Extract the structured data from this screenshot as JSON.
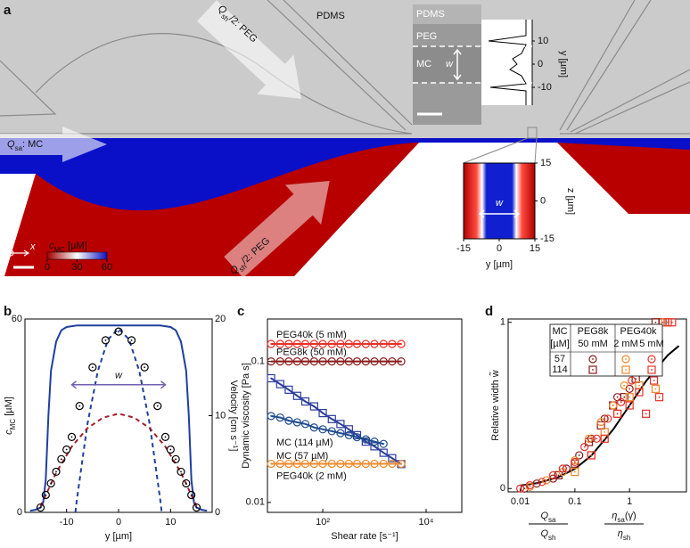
{
  "panel_a": {
    "label": "a",
    "pdms": "PDMS",
    "inlet_top": {
      "q": "Q",
      "sub": "sh",
      "rest": "/2: PEG"
    },
    "inlet_side": {
      "q": "Q",
      "sub": "sa",
      "rest": ": MC"
    },
    "inlet_bottom": {
      "q": "Q",
      "sub": "sh",
      "rest": "/2: PEG"
    },
    "micrograph": {
      "pdms": "PDMS",
      "peg": "PEG",
      "mc": "MC",
      "w": "w",
      "yticks": [
        10,
        0,
        -10
      ],
      "ylabel": "y [µm]"
    },
    "simulation": {
      "w": "w",
      "zticks": [
        15,
        0,
        -15
      ],
      "yticks": [
        -15,
        0,
        15
      ],
      "zlabel": "z [µm]",
      "ylabel": "y [µm]"
    },
    "colorbar": {
      "label": {
        "c": "c",
        "sub": "MC",
        "rest": " [µM]"
      },
      "ticks": [
        0,
        30,
        60
      ]
    },
    "axes": {
      "y": "y",
      "z": "z",
      "x": "x"
    }
  },
  "chart_data": [
    {
      "type": "line",
      "label": "b",
      "xlabel": "y [µm]",
      "ylabel": {
        "c": "c",
        "sub": "MC",
        "rest": " [µM]"
      },
      "ylabel_color": "#1f3f9f",
      "y2label": "Velocity [cm s⁻¹]",
      "annotation": "w",
      "xlim": [
        -18,
        18
      ],
      "xticks": [
        -10,
        0,
        10
      ],
      "ylim": [
        0,
        60
      ],
      "yticks": [
        0,
        60
      ],
      "y2lim": [
        0,
        20
      ],
      "y2ticks": [
        0,
        10,
        20
      ],
      "series": [
        {
          "color": "#1f3f9f",
          "x": [
            -17,
            -16,
            -15,
            -14.5,
            -14,
            -13.5,
            -13,
            -12,
            -11,
            -10,
            -8,
            -4,
            0,
            4,
            8,
            10,
            11,
            12,
            13,
            13.5,
            14,
            14.5,
            15,
            16,
            17
          ],
          "values": [
            0.5,
            0.8,
            1.5,
            3,
            10,
            30,
            44,
            53,
            56.5,
            57.5,
            58,
            58,
            58,
            58,
            58,
            57.5,
            56.5,
            53,
            44,
            30,
            10,
            3,
            1.5,
            0.8,
            0.5
          ]
        },
        {
          "color": "#1f3f9f",
          "dash": true,
          "axis": "y2",
          "x": [
            -8.3,
            -8,
            -6,
            -4,
            -2,
            0,
            2,
            4,
            6,
            8,
            8.3
          ],
          "values": [
            0,
            1.35,
            9.1,
            14.6,
            17.9,
            19,
            17.9,
            14.6,
            9.1,
            1.35,
            0
          ]
        },
        {
          "color": "#a0202a",
          "dash": true,
          "axis": "y2",
          "x": [
            -15,
            -12,
            -9,
            -6,
            -3,
            0,
            3,
            6,
            9,
            12,
            15
          ],
          "values": [
            0.64,
            4.1,
            6.8,
            8.7,
            9.8,
            10.2,
            9.8,
            8.7,
            6.8,
            4.1,
            0.64
          ]
        },
        {
          "color": "#000000",
          "marker": "circle",
          "line": false,
          "axis": "y2",
          "x": [
            -15,
            -14,
            -13,
            -12,
            -11,
            -10,
            -9,
            -7.5,
            -5,
            -2.5,
            0,
            2.5,
            5,
            7.5,
            9,
            10,
            11,
            12,
            13,
            14,
            15
          ],
          "values": [
            0.5,
            1.8,
            3,
            4.2,
            5.5,
            6.5,
            7.8,
            11,
            15,
            17.8,
            18.7,
            17.8,
            15,
            11,
            7.8,
            6.5,
            5.5,
            4.2,
            3,
            1.8,
            0.5
          ]
        }
      ]
    },
    {
      "type": "line",
      "label": "c",
      "xlabel": "Shear rate [s⁻¹]",
      "ylabel": "Dynamic viscosity [Pa s]",
      "xlog": true,
      "ylog": true,
      "xlim": [
        8.5,
        49000
      ],
      "xticks": [
        {
          "value": 100,
          "label": "10²"
        },
        {
          "value": 10000,
          "label": "10⁴"
        }
      ],
      "ylim": [
        0.0085,
        0.2
      ],
      "yticks": [
        0.01,
        0.1
      ],
      "series": [
        {
          "name": "PEG40k (5 mM)",
          "color": "#e8322a",
          "marker": "circle",
          "x": [
            10,
            15,
            22,
            32,
            46,
            68,
            100,
            150,
            220,
            320,
            460,
            680,
            1000,
            1500,
            2200,
            3300
          ],
          "values": [
            0.133,
            0.133,
            0.133,
            0.133,
            0.133,
            0.133,
            0.133,
            0.133,
            0.133,
            0.133,
            0.133,
            0.133,
            0.133,
            0.133,
            0.133,
            0.133
          ]
        },
        {
          "name": "PEG8k (50 mM)",
          "color": "#8b1c1c",
          "marker": "circle",
          "x": [
            10,
            15,
            22,
            32,
            46,
            68,
            100,
            150,
            220,
            320,
            460,
            680,
            1000,
            1500,
            2200,
            3300
          ],
          "values": [
            0.1,
            0.1,
            0.1,
            0.1,
            0.1,
            0.1,
            0.1,
            0.1,
            0.1,
            0.1,
            0.1,
            0.1,
            0.1,
            0.1,
            0.1,
            0.1
          ]
        },
        {
          "name": "MC (114 µM)",
          "color": "#2a3d9c",
          "marker": "square",
          "x": [
            10,
            15,
            22,
            32,
            46,
            68,
            100,
            150,
            220,
            320,
            460,
            680,
            1000,
            1500,
            2200,
            3300
          ],
          "values": [
            0.076,
            0.069,
            0.063,
            0.057,
            0.052,
            0.048,
            0.043,
            0.039,
            0.036,
            0.033,
            0.03,
            0.027,
            0.025,
            0.0225,
            0.0206,
            0.0187
          ]
        },
        {
          "name": "MC (57 µM)",
          "color": "#1e4b8f",
          "marker": "circle",
          "x": [
            10,
            15,
            22,
            32,
            46,
            68,
            100,
            150,
            220,
            320,
            460,
            680,
            1000,
            1500
          ],
          "values": [
            0.041,
            0.04,
            0.038,
            0.037,
            0.036,
            0.034,
            0.033,
            0.032,
            0.031,
            0.03,
            0.029,
            0.028,
            0.027,
            0.026
          ]
        },
        {
          "name": "PEG40k (2 mM)",
          "color": "#f0882a",
          "marker": "circle",
          "x": [
            10,
            15,
            22,
            32,
            46,
            68,
            100,
            150,
            220,
            320,
            460,
            680,
            1000,
            1500,
            2200,
            3300
          ],
          "values": [
            0.0188,
            0.0188,
            0.0188,
            0.0188,
            0.0188,
            0.0188,
            0.0188,
            0.0188,
            0.0188,
            0.0188,
            0.0188,
            0.0188,
            0.0188,
            0.0188,
            0.0188,
            0.0188
          ]
        }
      ]
    },
    {
      "type": "scatter",
      "label": "d",
      "ylabel": "Relative width w̃",
      "xlabel": {
        "left": {
          "num": {
            "t": "Q",
            "sub": "sa"
          },
          "den": {
            "t": "Q",
            "sub": "sh"
          }
        },
        "right": {
          "num": {
            "t": "η",
            "sub": "sa",
            "rest": "(γ̇)"
          },
          "den": {
            "t": "η",
            "sub": "sh"
          }
        }
      },
      "xlog": true,
      "xlim": [
        0.006,
        11
      ],
      "xticks": [
        0.01,
        0.1,
        1
      ],
      "ylim": [
        -0.02,
        1.02
      ],
      "yticks": [
        0,
        1
      ],
      "legend": {
        "mc": "MC",
        "mc_unit": "[µM]",
        "peg8k": "PEG8k",
        "peg8k_conc": "50 mM",
        "peg40k": "PEG40k",
        "peg40k_low": "2 mM",
        "peg40k_high": "5 mM",
        "rows": [
          "57",
          "114"
        ]
      },
      "series": [
        {
          "color": "#000000",
          "line": true,
          "x": [
            0.01,
            0.02,
            0.05,
            0.1,
            0.2,
            0.5,
            1,
            2,
            5,
            8
          ],
          "values": [
            0.018,
            0.032,
            0.069,
            0.119,
            0.198,
            0.354,
            0.5,
            0.646,
            0.802,
            0.858
          ]
        },
        {
          "color": "#8b1c1c",
          "marker": "circle",
          "x": [
            0.012,
            0.02,
            0.04,
            0.07,
            0.12,
            0.2,
            0.35,
            0.6,
            1.0,
            1.6,
            2.5
          ],
          "values": [
            0,
            0.03,
            0.06,
            0.12,
            0.2,
            0.3,
            0.42,
            0.55,
            0.6,
            0.7,
            0.75
          ]
        },
        {
          "color": "#8b1c1c",
          "marker": "square",
          "x": [
            0.05,
            0.1,
            0.18,
            0.3,
            0.5,
            0.8,
            1.3,
            2,
            3,
            4
          ],
          "values": [
            0.08,
            0.15,
            0.28,
            0.38,
            0.5,
            0.55,
            0.66,
            0.72,
            1,
            1
          ]
        },
        {
          "color": "#f0882a",
          "marker": "circle",
          "x": [
            0.015,
            0.03,
            0.06,
            0.1,
            0.18,
            0.3,
            0.5,
            0.8,
            1.2
          ],
          "values": [
            0.01,
            0.05,
            0.1,
            0.17,
            0.3,
            0.4,
            0.5,
            0.62,
            0.7
          ]
        },
        {
          "color": "#f0882a",
          "marker": "square",
          "x": [
            0.1,
            0.2,
            0.35,
            0.6,
            1,
            1.5,
            2.2,
            3,
            4.5
          ],
          "values": [
            0.1,
            0.2,
            0.34,
            0.45,
            0.55,
            0.62,
            0.7,
            0.6,
            1
          ]
        },
        {
          "color": "#e8322a",
          "marker": "circle",
          "x": [
            0.01,
            0.015,
            0.025,
            0.04,
            0.06,
            0.1,
            0.15,
            0.25,
            0.4,
            0.7,
            1.1,
            1.8
          ],
          "values": [
            0,
            0.02,
            0.04,
            0.08,
            0.12,
            0.16,
            0.25,
            0.3,
            0.42,
            0.52,
            0.65,
            0.72
          ]
        },
        {
          "color": "#e8322a",
          "marker": "square",
          "x": [
            0.2,
            0.35,
            0.6,
            1,
            1.5,
            2,
            2.8,
            3.5,
            5,
            6
          ],
          "values": [
            0.2,
            0.3,
            0.45,
            0.5,
            0.58,
            0.45,
            0.65,
            0.55,
            1,
            1
          ]
        }
      ]
    }
  ]
}
